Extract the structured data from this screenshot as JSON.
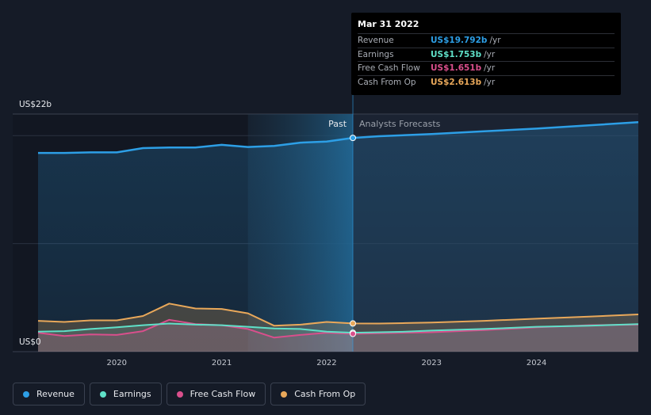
{
  "colors": {
    "revenue": "#2d9fe6",
    "earnings": "#5fe0c8",
    "fcf": "#d94f8c",
    "cfo": "#e9a85a",
    "background": "#151b27"
  },
  "labels": {
    "past": "Past",
    "forecast": "Analysts Forecasts"
  },
  "tooltip": {
    "date": "Mar 31 2022",
    "unit": "/yr",
    "rows": [
      {
        "label": "Revenue",
        "value": "US$19.792b",
        "color": "#2d9fe6"
      },
      {
        "label": "Earnings",
        "value": "US$1.753b",
        "color": "#5fe0c8"
      },
      {
        "label": "Free Cash Flow",
        "value": "US$1.651b",
        "color": "#d94f8c"
      },
      {
        "label": "Cash From Op",
        "value": "US$2.613b",
        "color": "#e9a85a"
      }
    ]
  },
  "legend": [
    {
      "label": "Revenue",
      "color": "#2d9fe6"
    },
    {
      "label": "Earnings",
      "color": "#5fe0c8"
    },
    {
      "label": "Free Cash Flow",
      "color": "#d94f8c"
    },
    {
      "label": "Cash From Op",
      "color": "#e9a85a"
    }
  ],
  "chart_data": {
    "type": "line",
    "title": "",
    "xlabel": "",
    "ylabel": "",
    "unit": "US$ billions",
    "xlim": [
      2019.25,
      2024.97
    ],
    "ylim": [
      0,
      22
    ],
    "y_tick_labels": [
      {
        "value": 22,
        "label": "US$22b"
      },
      {
        "value": 0,
        "label": "US$0"
      }
    ],
    "x_tick_labels": [
      "2020",
      "2021",
      "2022",
      "2023",
      "2024"
    ],
    "x_ticks": [
      2020,
      2021,
      2022,
      2023,
      2024
    ],
    "past_end": 2022.25,
    "highlight_start": 2021.25,
    "grid": true,
    "legend_position": "bottom-left",
    "series": [
      {
        "name": "Revenue",
        "key": "revenue",
        "x": [
          2019.25,
          2019.5,
          2019.75,
          2020.0,
          2020.25,
          2020.5,
          2020.75,
          2021.0,
          2021.25,
          2021.5,
          2021.75,
          2022.0,
          2022.25,
          2022.5,
          2022.75,
          2023.0,
          2023.5,
          2024.0,
          2024.5,
          2024.97
        ],
        "y": [
          18.4,
          18.4,
          18.45,
          18.45,
          18.85,
          18.9,
          18.9,
          19.15,
          18.95,
          19.05,
          19.35,
          19.45,
          19.79,
          19.95,
          20.05,
          20.15,
          20.4,
          20.65,
          20.95,
          21.25
        ]
      },
      {
        "name": "Earnings",
        "key": "earnings",
        "x": [
          2019.25,
          2019.5,
          2019.75,
          2020.0,
          2020.25,
          2020.5,
          2020.75,
          2021.0,
          2021.25,
          2021.5,
          2021.75,
          2022.0,
          2022.25,
          2022.5,
          2022.75,
          2023.0,
          2023.5,
          2024.0,
          2024.5,
          2024.97
        ],
        "y": [
          1.85,
          1.9,
          2.1,
          2.25,
          2.45,
          2.6,
          2.5,
          2.45,
          2.3,
          2.15,
          2.1,
          1.85,
          1.75,
          1.8,
          1.85,
          1.95,
          2.1,
          2.3,
          2.4,
          2.55
        ]
      },
      {
        "name": "Free Cash Flow",
        "key": "fcf",
        "x": [
          2019.25,
          2019.5,
          2019.75,
          2020.0,
          2020.25,
          2020.5,
          2020.75,
          2021.0,
          2021.25,
          2021.5,
          2021.75,
          2022.0,
          2022.25,
          2022.5,
          2022.75,
          2023.0,
          2023.5,
          2024.0,
          2024.5,
          2024.97
        ],
        "y": [
          1.75,
          1.45,
          1.6,
          1.55,
          1.9,
          2.95,
          2.55,
          2.45,
          2.1,
          1.3,
          1.55,
          1.75,
          1.65,
          1.7,
          1.75,
          1.8,
          2.0,
          2.25,
          2.45,
          2.5
        ]
      },
      {
        "name": "Cash From Op",
        "key": "cfo",
        "x": [
          2019.25,
          2019.5,
          2019.75,
          2020.0,
          2020.25,
          2020.5,
          2020.75,
          2021.0,
          2021.25,
          2021.5,
          2021.75,
          2022.0,
          2022.25,
          2022.5,
          2022.75,
          2023.0,
          2023.5,
          2024.0,
          2024.5,
          2024.97
        ],
        "y": [
          2.85,
          2.75,
          2.9,
          2.9,
          3.3,
          4.45,
          4.0,
          3.95,
          3.55,
          2.4,
          2.5,
          2.75,
          2.61,
          2.6,
          2.65,
          2.7,
          2.85,
          3.05,
          3.25,
          3.45
        ]
      }
    ]
  }
}
